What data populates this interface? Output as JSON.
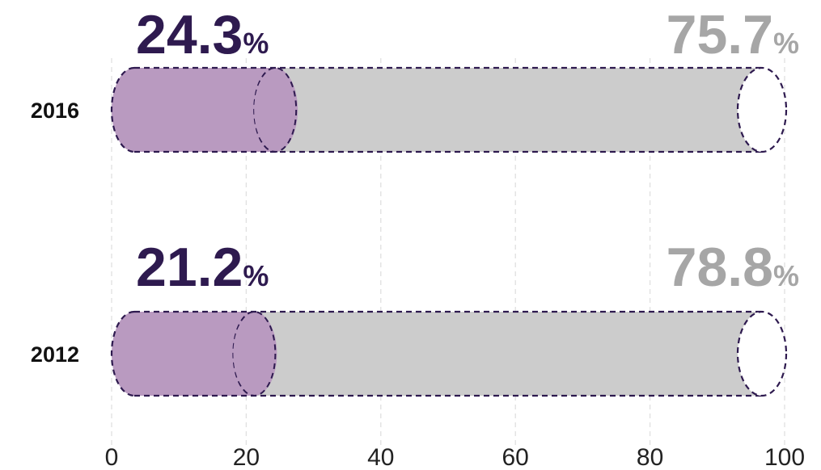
{
  "chart_data": {
    "type": "bar",
    "orientation": "horizontal",
    "stacked": true,
    "categories": [
      "2016",
      "2012"
    ],
    "series": [
      {
        "values": [
          24.3,
          21.2
        ],
        "labels": [
          "24.3",
          "21.2"
        ],
        "color": "#b99ac0",
        "label_color": "#2e1a4f"
      },
      {
        "values": [
          75.7,
          78.8
        ],
        "labels": [
          "75.7",
          "78.8"
        ],
        "color": "#cccccc",
        "label_color": "#a6a6a6"
      }
    ],
    "value_suffix": "%",
    "xlim": [
      0,
      100
    ],
    "xticks": [
      0,
      20,
      40,
      60,
      80,
      100
    ],
    "grid": true,
    "outline_color": "#2e1a4f"
  }
}
